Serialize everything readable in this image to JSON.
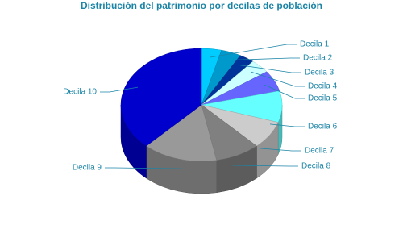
{
  "chart_data": {
    "type": "pie3d",
    "title": "Distribución del patrimonio por decilas de población",
    "categories": [
      "Decila 1",
      "Decila 2",
      "Decila 3",
      "Decila 4",
      "Decila 5",
      "Decila 6",
      "Decila 7",
      "Decila 8",
      "Decila 9",
      "Decila 10"
    ],
    "values": [
      4,
      4,
      3,
      4,
      6,
      9,
      8,
      9,
      15,
      38
    ],
    "colors": [
      "#00ccff",
      "#0099cc",
      "#003399",
      "#ccffff",
      "#6666ff",
      "#66ffff",
      "#cccccc",
      "#808080",
      "#999999",
      "#0000cc"
    ]
  }
}
